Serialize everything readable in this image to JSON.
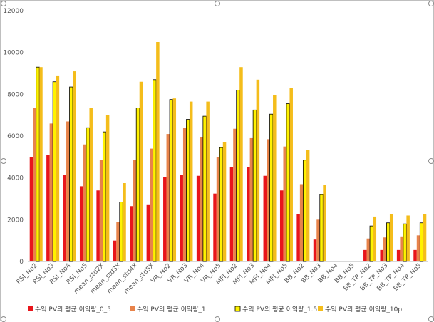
{
  "chart_data": {
    "type": "bar",
    "title": "",
    "xlabel": "",
    "ylabel": "",
    "ylim": [
      0,
      12000
    ],
    "yticks": [
      0,
      2000,
      4000,
      6000,
      8000,
      10000,
      12000
    ],
    "ytick_labels": [
      "0",
      "2000",
      "4000",
      "6000",
      "8000",
      "10000",
      "12000"
    ],
    "grid": false,
    "legend_position": "bottom",
    "categories": [
      "RSI_No2",
      "RSI_No3",
      "RSI_No4",
      "RSI_No5",
      "mean_std2X",
      "mean_std3X",
      "mean_std4X",
      "mean_std5X",
      "VR_No2",
      "VR_No3",
      "VR_No4",
      "VR_No5",
      "MFI_No2",
      "MFI_No3",
      "MFI_No4",
      "MFI_No5",
      "BB_No2",
      "BB_No3",
      "BB_No4",
      "BB_No5",
      "BB_TP_No2",
      "BB_TP_No3",
      "BB_TP_No4",
      "BB_TP_No5"
    ],
    "series": [
      {
        "name": "수익 PV의 평균 이익량_0_5",
        "color": "#e8151b",
        "outline": "",
        "values": [
          5000,
          5100,
          4150,
          3600,
          3400,
          1000,
          2650,
          2700,
          4050,
          4150,
          4100,
          3250,
          4500,
          4500,
          4100,
          3400,
          2250,
          1050,
          0,
          0,
          550,
          550,
          550,
          550
        ]
      },
      {
        "name": "수익 PV의 평균 이익량_1",
        "color": "#e8834a",
        "outline": "",
        "values": [
          7350,
          6600,
          6700,
          5600,
          4850,
          1900,
          4850,
          5400,
          6100,
          6400,
          5950,
          5000,
          6350,
          5900,
          5850,
          5500,
          3700,
          2000,
          0,
          0,
          1100,
          1150,
          1200,
          1250
        ]
      },
      {
        "name": "수익 PV의 평균 이익량_1.5",
        "color": "#fff200",
        "outline": "#000000",
        "values": [
          9300,
          8600,
          8350,
          6400,
          6200,
          2850,
          7350,
          8700,
          7750,
          6800,
          6950,
          5450,
          8200,
          7250,
          7050,
          7550,
          4850,
          3200,
          0,
          0,
          1700,
          1850,
          1800,
          1850
        ]
      },
      {
        "name": "수익 PV의 평균 이익량_10p",
        "color": "#f4bd1b",
        "outline": "",
        "values": [
          9300,
          8900,
          9100,
          7350,
          7000,
          3750,
          8600,
          10500,
          7800,
          7650,
          7650,
          5700,
          9300,
          8700,
          7950,
          8300,
          5350,
          3650,
          0,
          0,
          2150,
          2250,
          2200,
          2250
        ]
      }
    ]
  }
}
